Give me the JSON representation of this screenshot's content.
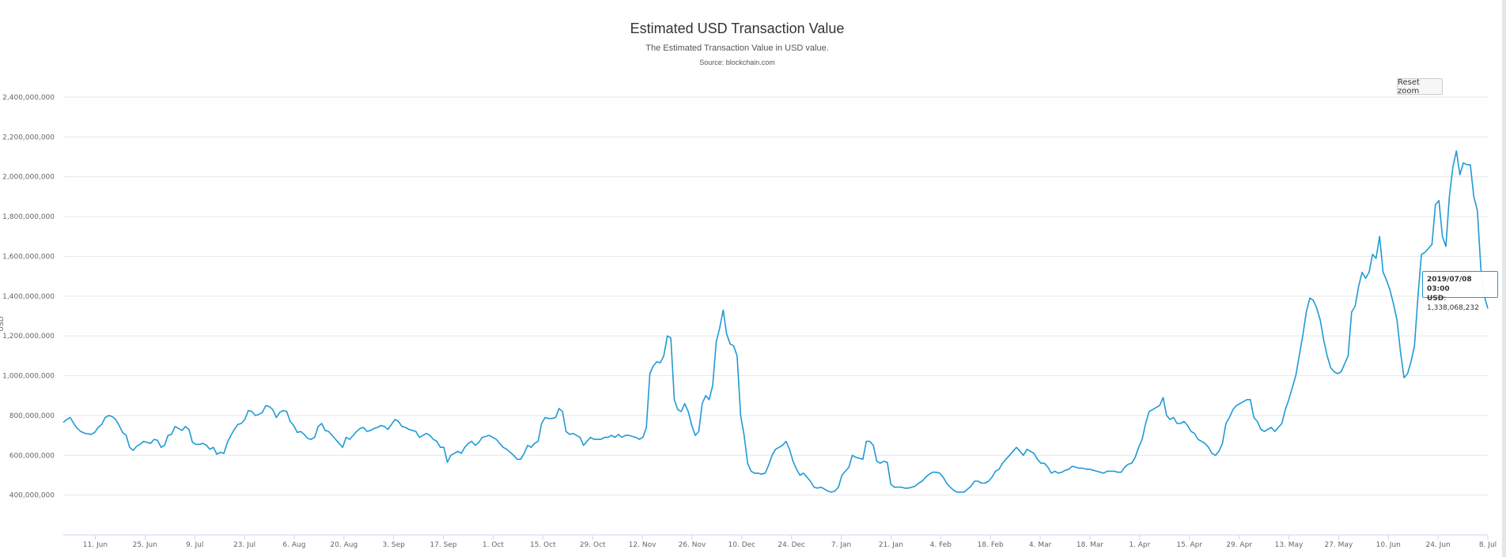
{
  "header": {
    "title": "Estimated USD Transaction Value",
    "subtitle": "The Estimated Transaction Value in USD value.",
    "source": "Source: blockchain.com"
  },
  "controls": {
    "reset_zoom_label": "Reset zoom"
  },
  "tooltip": {
    "date": "2019/07/08 03:00",
    "series_label": "USD",
    "value": "1,338,068,232"
  },
  "colors": {
    "line": "#1f9ad6",
    "grid": "#e6e6e6",
    "axis": "#ccd6eb",
    "text": "#666666"
  },
  "chart_data": {
    "type": "line",
    "title": "Estimated USD Transaction Value",
    "subtitle": "The Estimated Transaction Value in USD value.",
    "credits": "Source: blockchain.com",
    "xlabel": "",
    "ylabel": "USD",
    "ylim": [
      200000000,
      2400000000
    ],
    "grid": true,
    "legend": "none",
    "y_ticks": [
      "400,000,000",
      "600,000,000",
      "800,000,000",
      "1,000,000,000",
      "1,200,000,000",
      "1,400,000,000",
      "1,600,000,000",
      "1,800,000,000",
      "2,000,000,000",
      "2,200,000,000",
      "2,400,000,000"
    ],
    "y_tick_values": [
      400000000,
      600000000,
      800000000,
      1000000000,
      1200000000,
      1400000000,
      1600000000,
      1800000000,
      2000000000,
      2200000000,
      2400000000
    ],
    "x_ticks": [
      "11. Jun",
      "25. Jun",
      "9. Jul",
      "23. Jul",
      "6. Aug",
      "20. Aug",
      "3. Sep",
      "17. Sep",
      "1. Oct",
      "15. Oct",
      "29. Oct",
      "12. Nov",
      "26. Nov",
      "10. Dec",
      "24. Dec",
      "7. Jan",
      "21. Jan",
      "4. Feb",
      "18. Feb",
      "4. Mar",
      "18. Mar",
      "1. Apr",
      "15. Apr",
      "29. Apr",
      "13. May",
      "27. May",
      "10. Jun",
      "24. Jun",
      "8. Jul"
    ],
    "x_tick_day_offsets": [
      9,
      23,
      37,
      51,
      65,
      79,
      93,
      107,
      121,
      135,
      149,
      163,
      177,
      191,
      205,
      219,
      233,
      247,
      261,
      275,
      289,
      303,
      317,
      331,
      345,
      359,
      373,
      387,
      401
    ],
    "x_start": "2018-06-02",
    "x_end": "2019-07-08",
    "series": [
      {
        "name": "USD",
        "points_per_day": 1,
        "values_millions": [
          765,
          780,
          790,
          760,
          735,
          720,
          712,
          708,
          705,
          715,
          740,
          755,
          790,
          800,
          795,
          780,
          750,
          715,
          700,
          640,
          625,
          645,
          655,
          670,
          665,
          660,
          680,
          675,
          640,
          650,
          700,
          705,
          745,
          735,
          725,
          745,
          730,
          665,
          655,
          655,
          660,
          650,
          630,
          640,
          605,
          615,
          610,
          665,
          700,
          730,
          755,
          760,
          780,
          825,
          820,
          800,
          805,
          815,
          850,
          845,
          830,
          790,
          815,
          825,
          820,
          770,
          750,
          715,
          720,
          705,
          685,
          680,
          690,
          745,
          760,
          725,
          720,
          700,
          680,
          660,
          640,
          690,
          680,
          700,
          720,
          735,
          740,
          720,
          725,
          735,
          740,
          750,
          745,
          730,
          755,
          780,
          770,
          745,
          740,
          730,
          725,
          720,
          690,
          700,
          710,
          700,
          680,
          670,
          640,
          640,
          565,
          600,
          610,
          620,
          610,
          640,
          660,
          670,
          650,
          665,
          690,
          695,
          700,
          690,
          680,
          660,
          640,
          630,
          615,
          600,
          580,
          580,
          610,
          650,
          640,
          660,
          670,
          760,
          790,
          785,
          785,
          790,
          835,
          820,
          720,
          705,
          710,
          700,
          690,
          650,
          670,
          690,
          680,
          680,
          680,
          690,
          690,
          700,
          690,
          705,
          690,
          700,
          700,
          695,
          690,
          680,
          690,
          740,
          1010,
          1050,
          1070,
          1065,
          1100,
          1200,
          1190,
          880,
          830,
          820,
          860,
          820,
          750,
          700,
          720,
          860,
          900,
          880,
          950,
          1170,
          1240,
          1330,
          1210,
          1160,
          1150,
          1100,
          800,
          700,
          560,
          520,
          510,
          510,
          505,
          510,
          550,
          600,
          630,
          640,
          650,
          670,
          630,
          570,
          530,
          500,
          510,
          490,
          470,
          440,
          435,
          440,
          430,
          420,
          415,
          420,
          440,
          500,
          520,
          540,
          600,
          590,
          585,
          580,
          670,
          670,
          650,
          570,
          560,
          570,
          565,
          455,
          440,
          440,
          440,
          435,
          435,
          440,
          445,
          460,
          470,
          490,
          505,
          515,
          515,
          510,
          490,
          460,
          440,
          425,
          415,
          415,
          415,
          430,
          445,
          470,
          470,
          460,
          460,
          470,
          490,
          520,
          530,
          560,
          580,
          600,
          620,
          640,
          620,
          600,
          630,
          620,
          610,
          580,
          560,
          560,
          540,
          510,
          520,
          510,
          515,
          525,
          530,
          545,
          540,
          535,
          535,
          530,
          530,
          525,
          520,
          515,
          510,
          520,
          520,
          520,
          515,
          515,
          540,
          555,
          560,
          590,
          640,
          680,
          760,
          820,
          830,
          840,
          850,
          890,
          800,
          780,
          790,
          760,
          760,
          770,
          750,
          720,
          710,
          680,
          670,
          660,
          640,
          610,
          600,
          620,
          660,
          760,
          790,
          830,
          850,
          860,
          870,
          880,
          880,
          790,
          770,
          730,
          720,
          730,
          740,
          720,
          740,
          760,
          830,
          880,
          940,
          1000,
          1100,
          1200,
          1320,
          1390,
          1380,
          1340,
          1280,
          1180,
          1100,
          1040,
          1020,
          1010,
          1020,
          1060,
          1100,
          1320,
          1350,
          1450,
          1520,
          1490,
          1520,
          1610,
          1590,
          1700,
          1520,
          1480,
          1430,
          1360,
          1280,
          1120,
          990,
          1010,
          1070,
          1150,
          1400,
          1610,
          1620,
          1640,
          1660,
          1860,
          1880,
          1700,
          1650,
          1900,
          2050,
          2130,
          2010,
          2070,
          2060,
          2060,
          1900,
          1830,
          1540,
          1400,
          1338
        ]
      }
    ],
    "annotations": [
      {
        "type": "tooltip",
        "date": "2019/07/08 03:00",
        "label": "USD",
        "value": 1338068232
      }
    ]
  }
}
